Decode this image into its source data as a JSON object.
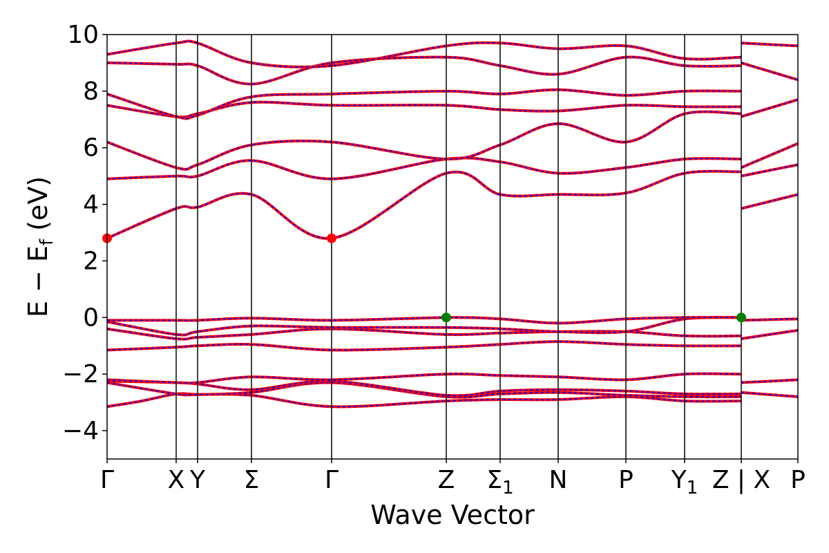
{
  "chart_data": {
    "type": "line",
    "title": "",
    "xlabel": "Wave Vector",
    "ylabel": "E − E",
    "ylabel_sub": "f",
    "ylabel_unit": " (eV)",
    "ylim": [
      -5,
      10
    ],
    "yticks": [
      "−4",
      "−2",
      "0",
      "2",
      "4",
      "6",
      "8",
      "10"
    ],
    "ytick_values": [
      -4,
      -2,
      0,
      2,
      4,
      6,
      8,
      10
    ],
    "xlim": [
      0,
      1
    ],
    "kpoints": [
      {
        "label": "Γ",
        "sub": "",
        "x": 0.0
      },
      {
        "label": "X",
        "sub": "",
        "x": 0.1
      },
      {
        "label": "Y",
        "sub": "",
        "x": 0.131
      },
      {
        "label": "Σ",
        "sub": "",
        "x": 0.209
      },
      {
        "label": "Γ",
        "sub": "",
        "x": 0.325
      },
      {
        "label": "Z",
        "sub": "",
        "x": 0.491
      },
      {
        "label": "Σ",
        "sub": "1",
        "x": 0.569
      },
      {
        "label": "N",
        "sub": "",
        "x": 0.653
      },
      {
        "label": "P",
        "sub": "",
        "x": 0.751
      },
      {
        "label": "Y",
        "sub": "1",
        "x": 0.836
      },
      {
        "label": "Z | X",
        "sub": "",
        "x": 0.918
      },
      {
        "label": "P",
        "sub": "",
        "x": 1.0
      }
    ],
    "line_color": "#ff0000",
    "dash_color": "#0000ff",
    "cbm_color": "#ff0000",
    "vbm_color": "#008000",
    "grid": false,
    "legend": "none",
    "cbm_points": [
      [
        0.0,
        2.8
      ],
      [
        0.325,
        2.8
      ]
    ],
    "vbm_points": [
      [
        0.491,
        0.0
      ],
      [
        0.918,
        0.0
      ]
    ],
    "bands": [
      [
        [
          0,
          -3.15
        ],
        [
          0.05,
          -2.95
        ],
        [
          0.1,
          -2.7
        ],
        [
          0.131,
          -2.72
        ],
        [
          0.209,
          -2.75
        ],
        [
          0.325,
          -3.15
        ],
        [
          0.491,
          -2.95
        ],
        [
          0.569,
          -2.9
        ],
        [
          0.653,
          -2.9
        ],
        [
          0.751,
          -2.8
        ],
        [
          0.836,
          -2.95
        ],
        [
          0.918,
          -2.95
        ]
      ],
      [
        [
          0,
          -2.3
        ],
        [
          0.1,
          -2.7
        ],
        [
          0.131,
          -2.72
        ],
        [
          0.209,
          -2.65
        ],
        [
          0.325,
          -2.3
        ],
        [
          0.491,
          -2.8
        ],
        [
          0.569,
          -2.7
        ],
        [
          0.653,
          -2.65
        ],
        [
          0.751,
          -2.75
        ],
        [
          0.836,
          -2.8
        ],
        [
          0.918,
          -2.8
        ]
      ],
      [
        [
          0,
          -2.25
        ],
        [
          0.1,
          -2.3
        ],
        [
          0.131,
          -2.35
        ],
        [
          0.209,
          -2.55
        ],
        [
          0.325,
          -2.25
        ],
        [
          0.491,
          -2.75
        ],
        [
          0.569,
          -2.6
        ],
        [
          0.653,
          -2.55
        ],
        [
          0.751,
          -2.6
        ],
        [
          0.836,
          -2.7
        ],
        [
          0.918,
          -2.7
        ]
      ],
      [
        [
          0,
          -2.2
        ],
        [
          0.1,
          -2.3
        ],
        [
          0.131,
          -2.3
        ],
        [
          0.209,
          -2.1
        ],
        [
          0.325,
          -2.2
        ],
        [
          0.491,
          -2.0
        ],
        [
          0.569,
          -2.05
        ],
        [
          0.653,
          -2.1
        ],
        [
          0.751,
          -2.2
        ],
        [
          0.836,
          -2.0
        ],
        [
          0.918,
          -2.0
        ]
      ],
      [
        [
          0,
          -1.15
        ],
        [
          0.1,
          -1.05
        ],
        [
          0.131,
          -1.0
        ],
        [
          0.209,
          -0.95
        ],
        [
          0.325,
          -1.15
        ],
        [
          0.491,
          -1.05
        ],
        [
          0.569,
          -0.95
        ],
        [
          0.653,
          -0.85
        ],
        [
          0.751,
          -0.95
        ],
        [
          0.836,
          -1.0
        ],
        [
          0.918,
          -1.0
        ]
      ],
      [
        [
          0,
          -0.4
        ],
        [
          0.1,
          -0.75
        ],
        [
          0.131,
          -0.7
        ],
        [
          0.209,
          -0.6
        ],
        [
          0.325,
          -0.4
        ],
        [
          0.491,
          -0.6
        ],
        [
          0.569,
          -0.55
        ],
        [
          0.653,
          -0.5
        ],
        [
          0.751,
          -0.5
        ],
        [
          0.836,
          -0.65
        ],
        [
          0.918,
          -0.65
        ]
      ],
      [
        [
          0,
          -0.15
        ],
        [
          0.1,
          -0.6
        ],
        [
          0.131,
          -0.5
        ],
        [
          0.209,
          -0.3
        ],
        [
          0.325,
          -0.35
        ],
        [
          0.491,
          -0.35
        ],
        [
          0.569,
          -0.4
        ],
        [
          0.653,
          -0.5
        ],
        [
          0.751,
          -0.5
        ],
        [
          0.836,
          -0.05
        ],
        [
          0.918,
          0.0
        ]
      ],
      [
        [
          0,
          -0.1
        ],
        [
          0.1,
          -0.1
        ],
        [
          0.131,
          -0.1
        ],
        [
          0.209,
          -0.02
        ],
        [
          0.325,
          -0.1
        ],
        [
          0.491,
          0.0
        ],
        [
          0.569,
          -0.05
        ],
        [
          0.653,
          -0.2
        ],
        [
          0.751,
          -0.05
        ],
        [
          0.836,
          0.0
        ],
        [
          0.918,
          0.0
        ]
      ],
      [
        [
          0,
          2.8
        ],
        [
          0.1,
          3.85
        ],
        [
          0.131,
          3.9
        ],
        [
          0.209,
          4.35
        ],
        [
          0.325,
          2.8
        ],
        [
          0.491,
          5.1
        ],
        [
          0.569,
          4.35
        ],
        [
          0.653,
          4.35
        ],
        [
          0.751,
          4.4
        ],
        [
          0.836,
          5.1
        ],
        [
          0.918,
          5.15
        ]
      ],
      [
        [
          0,
          4.9
        ],
        [
          0.1,
          5.0
        ],
        [
          0.131,
          5.0
        ],
        [
          0.209,
          5.55
        ],
        [
          0.325,
          4.9
        ],
        [
          0.491,
          5.6
        ],
        [
          0.569,
          5.5
        ],
        [
          0.653,
          5.1
        ],
        [
          0.751,
          5.3
        ],
        [
          0.836,
          5.6
        ],
        [
          0.918,
          5.6
        ]
      ],
      [
        [
          0,
          6.2
        ],
        [
          0.1,
          5.3
        ],
        [
          0.131,
          5.4
        ],
        [
          0.209,
          6.1
        ],
        [
          0.325,
          6.2
        ],
        [
          0.491,
          5.6
        ],
        [
          0.569,
          6.1
        ],
        [
          0.653,
          6.85
        ],
        [
          0.751,
          6.2
        ],
        [
          0.836,
          7.2
        ],
        [
          0.918,
          7.2
        ]
      ],
      [
        [
          0,
          7.5
        ],
        [
          0.1,
          7.1
        ],
        [
          0.131,
          7.2
        ],
        [
          0.209,
          7.6
        ],
        [
          0.325,
          7.5
        ],
        [
          0.491,
          7.5
        ],
        [
          0.569,
          7.35
        ],
        [
          0.653,
          7.3
        ],
        [
          0.751,
          7.5
        ],
        [
          0.836,
          7.45
        ],
        [
          0.918,
          7.45
        ]
      ],
      [
        [
          0,
          7.9
        ],
        [
          0.1,
          7.1
        ],
        [
          0.131,
          7.15
        ],
        [
          0.209,
          7.8
        ],
        [
          0.325,
          7.9
        ],
        [
          0.491,
          8.0
        ],
        [
          0.569,
          7.9
        ],
        [
          0.653,
          8.05
        ],
        [
          0.751,
          7.85
        ],
        [
          0.836,
          8.0
        ],
        [
          0.918,
          8.0
        ]
      ],
      [
        [
          0,
          9.0
        ],
        [
          0.1,
          8.95
        ],
        [
          0.131,
          8.9
        ],
        [
          0.209,
          8.25
        ],
        [
          0.325,
          9.0
        ],
        [
          0.491,
          9.2
        ],
        [
          0.569,
          8.9
        ],
        [
          0.653,
          8.6
        ],
        [
          0.751,
          9.2
        ],
        [
          0.836,
          8.9
        ],
        [
          0.918,
          8.9
        ]
      ],
      [
        [
          0,
          9.3
        ],
        [
          0.1,
          9.7
        ],
        [
          0.131,
          9.7
        ],
        [
          0.209,
          9.0
        ],
        [
          0.325,
          8.9
        ],
        [
          0.491,
          9.6
        ],
        [
          0.569,
          9.7
        ],
        [
          0.653,
          9.5
        ],
        [
          0.751,
          9.6
        ],
        [
          0.836,
          9.15
        ],
        [
          0.918,
          9.2
        ]
      ]
    ],
    "bands_right": [
      [
        [
          0.918,
          -2.65
        ],
        [
          1.0,
          -2.8
        ]
      ],
      [
        [
          0.918,
          -2.3
        ],
        [
          1.0,
          -2.2
        ]
      ],
      [
        [
          0.918,
          -0.75
        ],
        [
          1.0,
          -0.45
        ]
      ],
      [
        [
          0.918,
          -0.1
        ],
        [
          1.0,
          -0.05
        ]
      ],
      [
        [
          0.918,
          3.85
        ],
        [
          1.0,
          4.35
        ]
      ],
      [
        [
          0.918,
          5.0
        ],
        [
          1.0,
          5.4
        ]
      ],
      [
        [
          0.918,
          5.3
        ],
        [
          1.0,
          6.15
        ]
      ],
      [
        [
          0.918,
          7.1
        ],
        [
          1.0,
          7.7
        ]
      ],
      [
        [
          0.918,
          9.0
        ],
        [
          1.0,
          8.4
        ]
      ],
      [
        [
          0.918,
          9.7
        ],
        [
          1.0,
          9.6
        ]
      ]
    ]
  }
}
